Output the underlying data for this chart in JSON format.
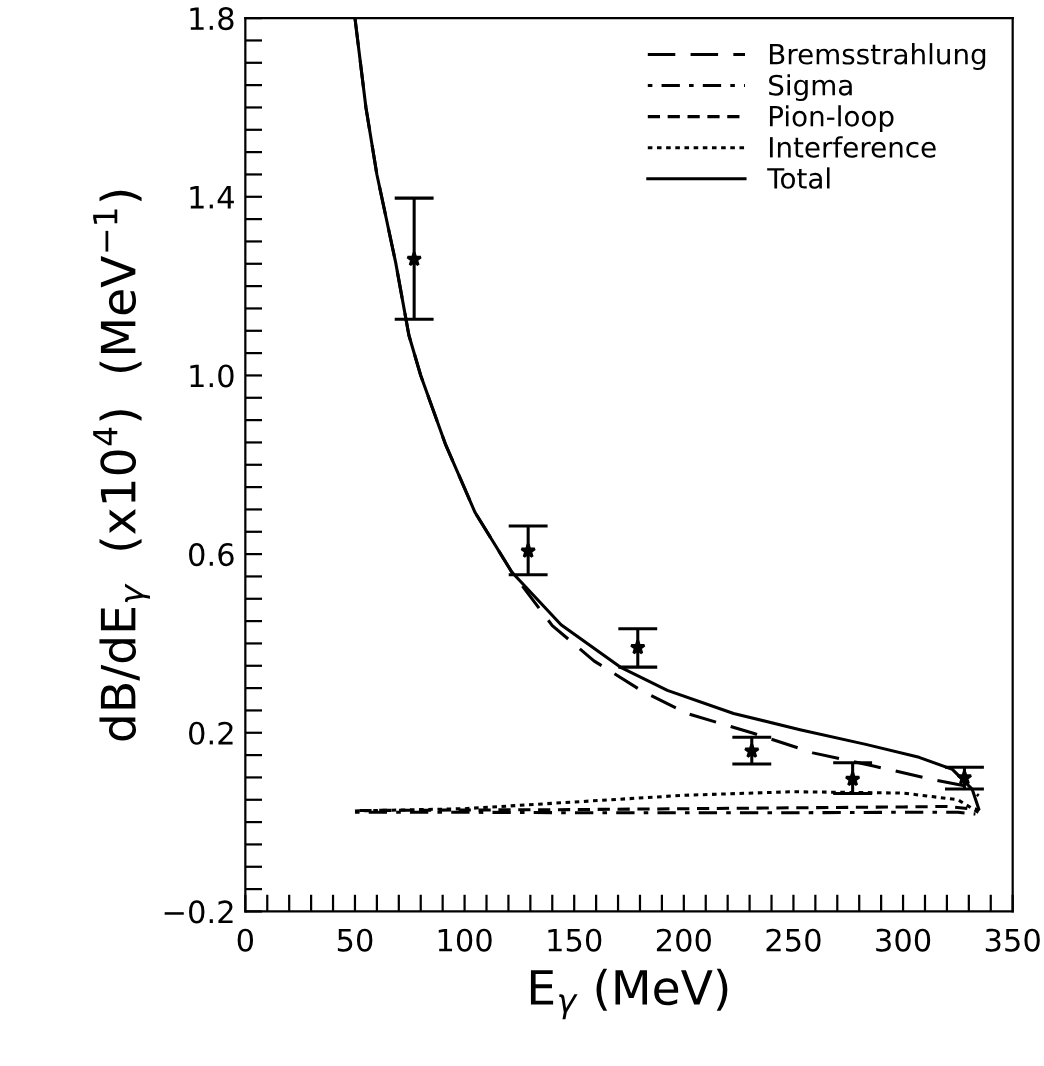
{
  "chart_data": {
    "type": "line",
    "xlabel": "E$_{γ}$ (MeV)",
    "ylabel": "dB/dE$_{γ}$  (x10$^{4}$)  (MeV$^{−1}$)",
    "xlim": [
      0,
      350
    ],
    "ylim": [
      -0.2,
      1.8
    ],
    "xticks": [
      0,
      {
        "value": 10,
        "label": null
      },
      {
        "value": 20,
        "label": null
      },
      {
        "value": 30,
        "label": null
      },
      {
        "value": 40,
        "label": null
      },
      50,
      {
        "value": 60,
        "label": null
      },
      {
        "value": 70,
        "label": null
      },
      {
        "value": 80,
        "label": null
      },
      {
        "value": 90,
        "label": null
      },
      100,
      {
        "value": 110,
        "label": null
      },
      {
        "value": 120,
        "label": null
      },
      {
        "value": 130,
        "label": null
      },
      {
        "value": 140,
        "label": null
      },
      150,
      {
        "value": 160,
        "label": null
      },
      {
        "value": 170,
        "label": null
      },
      {
        "value": 180,
        "label": null
      },
      {
        "value": 190,
        "label": null
      },
      200,
      {
        "value": 210,
        "label": null
      },
      {
        "value": 220,
        "label": null
      },
      {
        "value": 230,
        "label": null
      },
      {
        "value": 240,
        "label": null
      },
      250,
      {
        "value": 260,
        "label": null
      },
      {
        "value": 270,
        "label": null
      },
      {
        "value": 280,
        "label": null
      },
      {
        "value": 290,
        "label": null
      },
      300,
      {
        "value": 310,
        "label": null
      },
      {
        "value": 320,
        "label": null
      },
      {
        "value": 330,
        "label": null
      },
      {
        "value": 340,
        "label": null
      },
      350
    ],
    "yticks": [
      {
        "value": -0.2,
        "label": "−0.2"
      },
      {
        "value": -0.15,
        "label": null
      },
      {
        "value": -0.1,
        "label": null
      },
      {
        "value": -0.05,
        "label": null
      },
      {
        "value": 0,
        "label": null
      },
      {
        "value": 0.05,
        "label": null
      },
      {
        "value": 0.1,
        "label": null
      },
      {
        "value": 0.15,
        "label": null
      },
      0.2,
      {
        "value": 0.25,
        "label": null
      },
      {
        "value": 0.3,
        "label": null
      },
      {
        "value": 0.35,
        "label": null
      },
      {
        "value": 0.4,
        "label": null
      },
      {
        "value": 0.45,
        "label": null
      },
      {
        "value": 0.5,
        "label": null
      },
      {
        "value": 0.55,
        "label": null
      },
      0.6,
      {
        "value": 0.65,
        "label": null
      },
      {
        "value": 0.7,
        "label": null
      },
      {
        "value": 0.75,
        "label": null
      },
      {
        "value": 0.8,
        "label": null
      },
      {
        "value": 0.85,
        "label": null
      },
      {
        "value": 0.9,
        "label": null
      },
      {
        "value": 0.95,
        "label": null
      },
      {
        "value": 1.0,
        "label": "1.0"
      },
      {
        "value": 1.05,
        "label": null
      },
      {
        "value": 1.1,
        "label": null
      },
      {
        "value": 1.15,
        "label": null
      },
      {
        "value": 1.2,
        "label": null
      },
      {
        "value": 1.25,
        "label": null
      },
      {
        "value": 1.3,
        "label": null
      },
      {
        "value": 1.35,
        "label": null
      },
      1.4,
      {
        "value": 1.45,
        "label": null
      },
      {
        "value": 1.5,
        "label": null
      },
      {
        "value": 1.55,
        "label": null
      },
      {
        "value": 1.6,
        "label": null
      },
      {
        "value": 1.65,
        "label": null
      },
      {
        "value": 1.7,
        "label": null
      },
      {
        "value": 1.75,
        "label": null
      },
      1.8
    ],
    "grid": false,
    "legend": "top right",
    "series": [
      {
        "name": "Bremsstrahlung",
        "color": "#000000",
        "line_style": "dashed",
        "x": [
          50,
          55,
          60,
          68.6,
          74.6,
          80,
          91.2,
          104.8,
          121.5,
          140,
          159,
          180.4,
          201.5,
          231.7,
          258.9,
          286,
          313,
          328.5,
          334.5
        ],
        "values": [
          1.8,
          1.6,
          1.45,
          1.252,
          1.09,
          1.0,
          0.847,
          0.693,
          0.56,
          0.44,
          0.361,
          0.295,
          0.243,
          0.199,
          0.155,
          0.126,
          0.096,
          0.081,
          0.059
        ]
      },
      {
        "name": "Sigma",
        "color": "#000000",
        "line_style": "dashed",
        "x": [
          50,
          100,
          150,
          200,
          250,
          300,
          325,
          333
        ],
        "values": [
          0.022,
          0.022,
          0.021,
          0.021,
          0.021,
          0.022,
          0.022,
          0.018
        ]
      },
      {
        "name": "Pion-loop",
        "color": "#000000",
        "line_style": "dashed",
        "x": [
          52,
          100,
          150,
          200,
          250,
          300,
          320,
          335
        ],
        "values": [
          0.026,
          0.027,
          0.028,
          0.03,
          0.032,
          0.034,
          0.035,
          0.028
        ]
      },
      {
        "name": "Interference",
        "color": "#000000",
        "line_style": "dotted",
        "x": [
          50,
          100,
          150,
          200,
          250,
          300,
          325,
          335
        ],
        "values": [
          0.025,
          0.03,
          0.045,
          0.06,
          0.068,
          0.065,
          0.05,
          0.02
        ]
      },
      {
        "name": "Total",
        "color": "#000000",
        "line_style": "solid",
        "x": [
          50,
          55,
          60,
          68.6,
          74.6,
          80,
          91.2,
          104.8,
          121.5,
          144,
          171,
          192.5,
          222.7,
          253,
          283,
          307.3,
          322.5,
          331.5,
          334.5
        ],
        "values": [
          1.8,
          1.6,
          1.45,
          1.252,
          1.09,
          1.0,
          0.847,
          0.693,
          0.56,
          0.442,
          0.347,
          0.295,
          0.243,
          0.207,
          0.174,
          0.145,
          0.118,
          0.074,
          0.03
        ]
      },
      {
        "type": "scatter",
        "color": "#000000",
        "marker": "star",
        "x": [
          77,
          129,
          179,
          231,
          277,
          328
        ],
        "values": [
          1.26,
          0.607,
          0.391,
          0.159,
          0.096,
          0.099
        ],
        "errors": [
          [
            1.126,
            1.397
          ],
          [
            0.554,
            0.663
          ],
          [
            0.347,
            0.433
          ],
          [
            0.13,
            0.19
          ],
          [
            0.064,
            0.133
          ],
          [
            0.074,
            0.123
          ]
        ]
      }
    ]
  }
}
